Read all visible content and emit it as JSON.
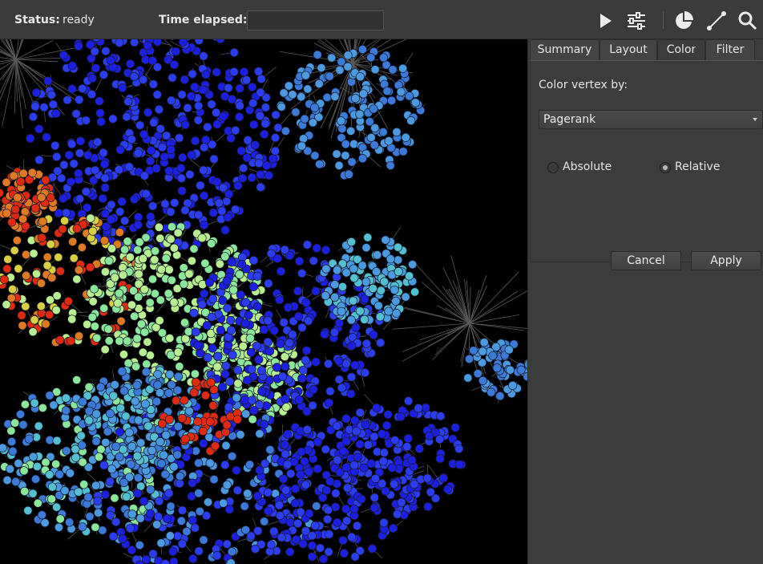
{
  "toolbar": {
    "status_label": "Status:",
    "status_value": "ready",
    "time_label": "Time elapsed:",
    "time_value": "",
    "icons": [
      "play-icon",
      "settings-sliders-icon",
      "pie-chart-icon",
      "edge-line-icon",
      "search-icon"
    ]
  },
  "panel": {
    "tabs": [
      {
        "label": "Summary",
        "active": false
      },
      {
        "label": "Layout",
        "active": false
      },
      {
        "label": "Color",
        "active": true
      },
      {
        "label": "Filter",
        "active": false
      }
    ],
    "color_vertex_label": "Color vertex by:",
    "color_vertex_value": "Pagerank",
    "radio_absolute": "Absolute",
    "radio_relative": "Relative",
    "selected_mode": "Relative",
    "cancel_label": "Cancel",
    "apply_label": "Apply"
  },
  "graph": {
    "background": "#000000",
    "edge_color": "#5a5a5a",
    "palette": [
      "#1a1fe0",
      "#2b3df0",
      "#3a7ad8",
      "#4a9ae0",
      "#52c0d0",
      "#8ae89a",
      "#b8f090",
      "#d8d040",
      "#e07a20",
      "#e02a10"
    ]
  }
}
